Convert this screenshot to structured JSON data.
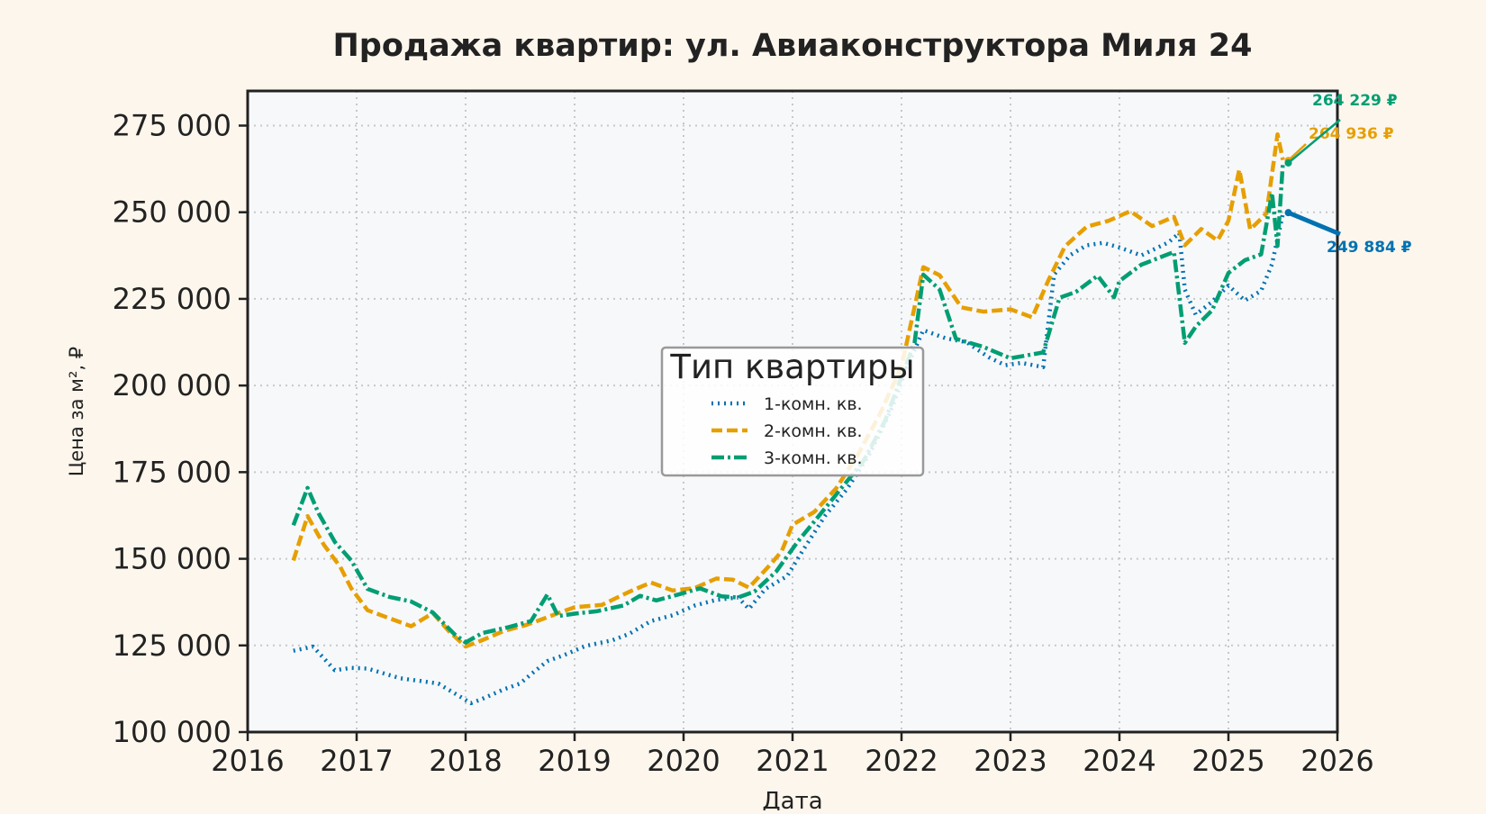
{
  "chart_data": {
    "type": "line",
    "title": "Продажа квартир: ул. Авиаконструктора Миля 24",
    "xlabel": "Дата",
    "ylabel": "Цена за м², ₽",
    "xlim": [
      2016,
      2026
    ],
    "ylim": [
      100000,
      285000
    ],
    "x_ticks": [
      2016,
      2017,
      2018,
      2019,
      2020,
      2021,
      2022,
      2023,
      2024,
      2025,
      2026
    ],
    "x_tick_labels": [
      "2016",
      "2017",
      "2018",
      "2019",
      "2020",
      "2021",
      "2022",
      "2023",
      "2024",
      "2025",
      "2026"
    ],
    "y_ticks": [
      100000,
      125000,
      150000,
      175000,
      200000,
      225000,
      250000,
      275000
    ],
    "y_tick_labels": [
      "100 000",
      "125 000",
      "150 000",
      "175 000",
      "200 000",
      "225 000",
      "250 000",
      "275 000"
    ],
    "grid": true,
    "legend": {
      "title": "Тип квартиры",
      "placement": "center"
    },
    "series": [
      {
        "name": "1-комн. кв.",
        "color": "#0072b2",
        "dash": "dotted",
        "x": [
          2016.42,
          2016.6,
          2016.8,
          2016.95,
          2017.1,
          2017.4,
          2017.6,
          2017.75,
          2017.9,
          2018.05,
          2018.15,
          2018.35,
          2018.5,
          2018.6,
          2018.75,
          2018.9,
          2019.1,
          2019.35,
          2019.5,
          2019.7,
          2019.9,
          2020.1,
          2020.3,
          2020.5,
          2020.6,
          2020.75,
          2020.95,
          2021.1,
          2021.3,
          2021.5,
          2021.7,
          2021.9,
          2022.05,
          2022.2,
          2022.4,
          2022.6,
          2022.8,
          2022.95,
          2023.1,
          2023.3,
          2023.4,
          2023.55,
          2023.7,
          2023.85,
          2024.0,
          2024.2,
          2024.45,
          2024.55,
          2024.6,
          2024.7,
          2024.85,
          2025.0,
          2025.15,
          2025.3,
          2025.4,
          2025.5
        ],
        "values": [
          123000,
          124500,
          118000,
          119000,
          118000,
          115500,
          115000,
          113500,
          111000,
          108500,
          110000,
          112000,
          114000,
          117000,
          120000,
          122000,
          125000,
          127000,
          128000,
          132000,
          134000,
          136000,
          138000,
          139000,
          136000,
          141000,
          145000,
          153000,
          162000,
          170000,
          180000,
          193000,
          205000,
          216000,
          214000,
          212000,
          208000,
          206000,
          207000,
          205000,
          232000,
          238000,
          240000,
          241000,
          240000,
          238000,
          241000,
          244000,
          228000,
          220000,
          224000,
          229000,
          225000,
          227000,
          235000,
          249884
        ]
      },
      {
        "name": "2-комн. кв.",
        "color": "#e69f00",
        "dash": "dashed",
        "x": [
          2016.42,
          2016.55,
          2016.7,
          2016.85,
          2016.95,
          2017.1,
          2017.3,
          2017.5,
          2017.7,
          2017.85,
          2018.0,
          2018.15,
          2018.35,
          2018.55,
          2018.7,
          2018.85,
          2019.0,
          2019.25,
          2019.5,
          2019.7,
          2019.9,
          2020.1,
          2020.3,
          2020.45,
          2020.6,
          2020.8,
          2020.9,
          2021.0,
          2021.2,
          2021.4,
          2021.6,
          2021.8,
          2022.0,
          2022.2,
          2022.35,
          2022.55,
          2022.75,
          2023.0,
          2023.2,
          2023.35,
          2023.5,
          2023.7,
          2023.9,
          2024.1,
          2024.3,
          2024.5,
          2024.6,
          2024.75,
          2024.9,
          2025.0,
          2025.1,
          2025.2,
          2025.35,
          2025.45,
          2025.5
        ],
        "values": [
          150000,
          162000,
          154000,
          148000,
          141000,
          135000,
          133000,
          131000,
          134000,
          129000,
          125000,
          126000,
          129000,
          131000,
          133000,
          134000,
          136000,
          137000,
          140000,
          143000,
          141000,
          142000,
          144000,
          144000,
          142000,
          148000,
          152000,
          160000,
          164000,
          170000,
          180000,
          192000,
          205000,
          234000,
          232000,
          223000,
          221000,
          222000,
          220000,
          230000,
          240000,
          246000,
          248000,
          250000,
          246000,
          249000,
          240000,
          245000,
          242000,
          248000,
          262000,
          245000,
          250000,
          272000,
          264936
        ]
      },
      {
        "name": "3-комн. кв.",
        "color": "#009e73",
        "dash": "dashdot",
        "x": [
          2016.42,
          2016.55,
          2016.65,
          2016.8,
          2016.95,
          2017.1,
          2017.3,
          2017.5,
          2017.7,
          2017.9,
          2018.0,
          2018.15,
          2018.4,
          2018.6,
          2018.75,
          2018.85,
          2019.0,
          2019.2,
          2019.45,
          2019.6,
          2019.75,
          2019.95,
          2020.15,
          2020.35,
          2020.5,
          2020.65,
          2020.85,
          2021.05,
          2021.25,
          2021.45,
          2021.65,
          2021.85,
          2022.0,
          2022.12,
          2022.2,
          2022.35,
          2022.5,
          2022.75,
          2023.0,
          2023.3,
          2023.45,
          2023.6,
          2023.8,
          2023.95,
          2024.0,
          2024.2,
          2024.5,
          2024.6,
          2024.7,
          2024.85,
          2025.0,
          2025.15,
          2025.3,
          2025.4,
          2025.45,
          2025.5
        ],
        "values": [
          160000,
          170000,
          163000,
          155000,
          150000,
          141000,
          139000,
          138000,
          134000,
          128000,
          126000,
          129000,
          130000,
          132000,
          140000,
          133000,
          134000,
          135000,
          137000,
          139000,
          138000,
          140000,
          141000,
          139000,
          139000,
          141000,
          146000,
          155000,
          163000,
          170000,
          178000,
          190000,
          203000,
          212000,
          232000,
          228000,
          213000,
          211000,
          208000,
          210000,
          225000,
          227000,
          232000,
          225000,
          230000,
          235000,
          239000,
          212000,
          217000,
          222000,
          232000,
          236000,
          238000,
          256000,
          240000,
          264229
        ]
      }
    ],
    "annotations": [
      {
        "series": "1-комн. кв.",
        "text": "249 884 ₽"
      },
      {
        "series": "2-комн. кв.",
        "text": "264 936 ₽"
      },
      {
        "series": "3-комн. кв.",
        "text": "264 229 ₽"
      }
    ]
  }
}
